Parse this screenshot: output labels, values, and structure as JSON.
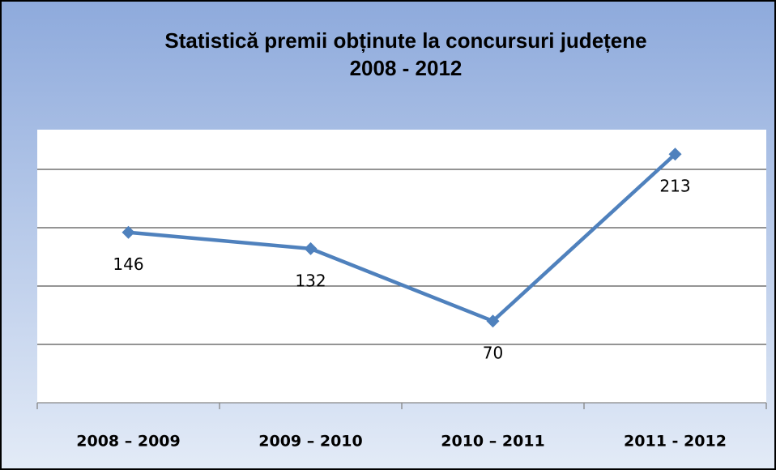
{
  "chart_data": {
    "type": "line",
    "title": [
      "Statistică premii obținute la concursuri județene",
      "2008 - 2012"
    ],
    "categories": [
      "2008 – 2009",
      "2009 – 2010",
      "2010 – 2011",
      "2011 - 2012"
    ],
    "values": [
      146,
      132,
      70,
      213
    ],
    "color": "#4f81bd",
    "ylim": [
      0,
      234
    ],
    "yticks": [
      0,
      50,
      100,
      150,
      200
    ],
    "grid": true
  }
}
